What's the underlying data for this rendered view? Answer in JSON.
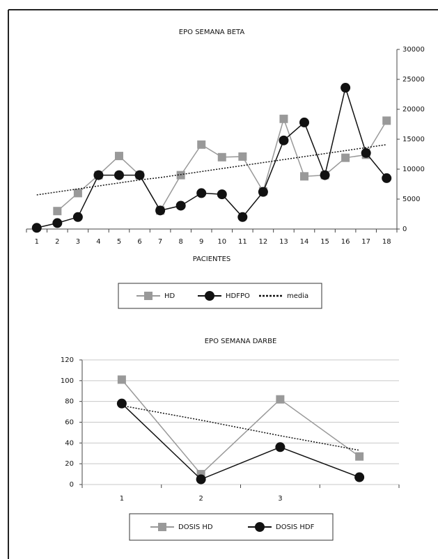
{
  "chart_data": [
    {
      "type": "line",
      "title": "EPO SEMANA BETA",
      "x_label": "PACIENTES",
      "categories": [
        "1",
        "2",
        "3",
        "4",
        "5",
        "6",
        "7",
        "8",
        "9",
        "10",
        "11",
        "12",
        "13",
        "14",
        "15",
        "16",
        "17",
        "18"
      ],
      "ylim": [
        0,
        30000
      ],
      "yticks": [
        0,
        5000,
        10000,
        15000,
        20000,
        25000,
        30000
      ],
      "y_axis_side": "right",
      "grid": false,
      "series": [
        {
          "name": "HD",
          "color": "#999999",
          "marker": "square",
          "values": [
            null,
            3000,
            6000,
            9000,
            12200,
            9000,
            3100,
            9000,
            14100,
            12000,
            12100,
            6300,
            18400,
            8800,
            9000,
            11900,
            12400,
            18100
          ]
        },
        {
          "name": "HDFPO",
          "color": "#111111",
          "marker": "circle",
          "values": [
            200,
            1000,
            2000,
            9000,
            9000,
            9000,
            3100,
            3900,
            6000,
            5800,
            2000,
            6200,
            14800,
            17800,
            9000,
            23600,
            12700,
            8500
          ]
        },
        {
          "name": "media",
          "color": "#111111",
          "marker": "none",
          "dash": true,
          "values": [
            5700,
            6200,
            6700,
            7200,
            7700,
            8200,
            8600,
            9100,
            9600,
            10100,
            10600,
            11100,
            11600,
            12100,
            12600,
            13100,
            13600,
            14100
          ]
        }
      ]
    },
    {
      "type": "line",
      "title": "EPO SEMANA DARBE",
      "categories": [
        "1",
        "2",
        "3",
        null
      ],
      "ylim": [
        0,
        120
      ],
      "yticks": [
        0,
        20,
        40,
        60,
        80,
        100,
        120
      ],
      "y_axis_side": "left",
      "grid": true,
      "series": [
        {
          "name": "DOSIS HD",
          "color": "#999999",
          "marker": "square",
          "values": [
            101,
            10,
            82,
            27
          ]
        },
        {
          "name": "DOSIS HDF",
          "color": "#111111",
          "marker": "circle",
          "values": [
            78,
            5,
            36,
            7
          ]
        },
        {
          "color": "#111111",
          "marker": "none",
          "dash": true,
          "values": [
            76,
            62,
            47,
            33
          ]
        }
      ]
    }
  ]
}
